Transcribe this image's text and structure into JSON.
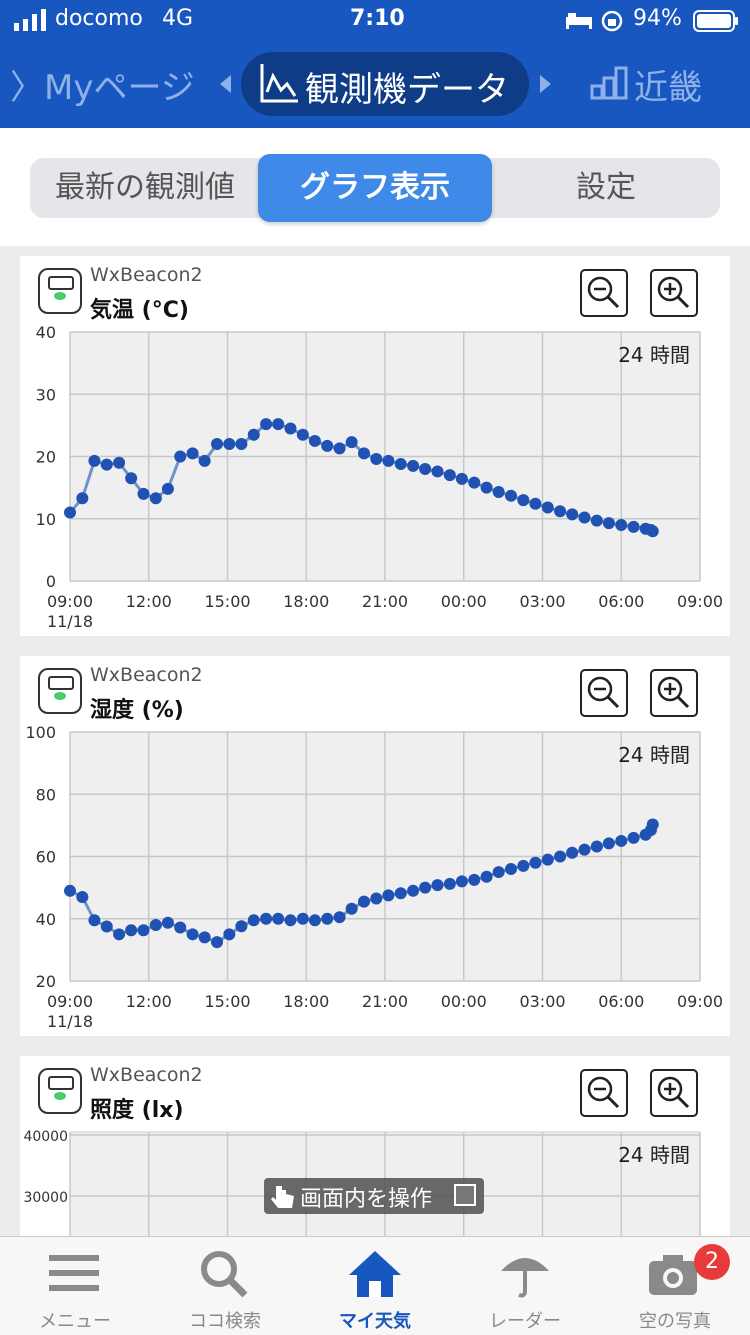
{
  "status_bar": {
    "carrier": "docomo",
    "network": "4G",
    "time": "7:10",
    "battery": "94%"
  },
  "nav": {
    "prev": "Myページ",
    "current": "観測機データ",
    "next": "近畿"
  },
  "segments": {
    "latest": "最新の観測値",
    "graph": "グラフ表示",
    "settings": "設定"
  },
  "charts": [
    {
      "device": "WxBeacon2",
      "metric": "気温 (°C)",
      "range_label": "24 時間",
      "x_date": "11/18",
      "chart_data": {
        "type": "line",
        "title": "気温 (°C)",
        "xlabel": "",
        "ylabel": "",
        "x_ticks": [
          "09:00",
          "12:00",
          "15:00",
          "18:00",
          "21:00",
          "00:00",
          "03:00",
          "06:00",
          "09:00"
        ],
        "y_ticks": [
          "0",
          "10",
          "20",
          "30",
          "40"
        ],
        "ylim": [
          0,
          40
        ],
        "xlim_hours": [
          0,
          24
        ],
        "x_hours": [
          0,
          0.47,
          0.93,
          1.4,
          1.87,
          2.33,
          2.8,
          3.27,
          3.73,
          4.2,
          4.67,
          5.13,
          5.6,
          6.07,
          6.53,
          7,
          7.47,
          7.93,
          8.4,
          8.87,
          9.33,
          9.8,
          10.27,
          10.73,
          11.2,
          11.67,
          12.13,
          12.6,
          13.07,
          13.53,
          14,
          14.47,
          14.93,
          15.4,
          15.87,
          16.33,
          16.8,
          17.27,
          17.73,
          18.2,
          18.67,
          19.13,
          19.6,
          20.07,
          20.53,
          21,
          21.47,
          21.93,
          22.13,
          22.2
        ],
        "values": [
          11,
          13.3,
          19.3,
          18.7,
          19,
          16.5,
          14,
          13.3,
          14.8,
          20,
          20.5,
          19.3,
          22,
          22,
          22,
          23.5,
          25.2,
          25.2,
          24.5,
          23.5,
          22.5,
          21.7,
          21.3,
          22.3,
          20.5,
          19.6,
          19.3,
          18.8,
          18.5,
          18,
          17.6,
          17,
          16.4,
          15.8,
          15,
          14.3,
          13.7,
          13,
          12.4,
          11.8,
          11.2,
          10.7,
          10.2,
          9.7,
          9.3,
          9,
          8.7,
          8.4,
          8.2,
          8
        ],
        "grid": true
      }
    },
    {
      "device": "WxBeacon2",
      "metric": "湿度 (%)",
      "range_label": "24 時間",
      "x_date": "11/18",
      "chart_data": {
        "type": "line",
        "title": "湿度 (%)",
        "xlabel": "",
        "ylabel": "",
        "x_ticks": [
          "09:00",
          "12:00",
          "15:00",
          "18:00",
          "21:00",
          "00:00",
          "03:00",
          "06:00",
          "09:00"
        ],
        "y_ticks": [
          "20",
          "40",
          "60",
          "80",
          "100"
        ],
        "ylim": [
          20,
          100
        ],
        "xlim_hours": [
          0,
          24
        ],
        "x_hours": [
          0,
          0.47,
          0.93,
          1.4,
          1.87,
          2.33,
          2.8,
          3.27,
          3.73,
          4.2,
          4.67,
          5.13,
          5.6,
          6.07,
          6.53,
          7,
          7.47,
          7.93,
          8.4,
          8.87,
          9.33,
          9.8,
          10.27,
          10.73,
          11.2,
          11.67,
          12.13,
          12.6,
          13.07,
          13.53,
          14,
          14.47,
          14.93,
          15.4,
          15.87,
          16.33,
          16.8,
          17.27,
          17.73,
          18.2,
          18.67,
          19.13,
          19.6,
          20.07,
          20.53,
          21,
          21.47,
          21.93,
          22.13,
          22.2
        ],
        "values": [
          49,
          47,
          39.5,
          37.5,
          35,
          36.3,
          36.3,
          38,
          38.7,
          37.2,
          35,
          34,
          32.5,
          35,
          37.6,
          39.5,
          40,
          40,
          39.5,
          40,
          39.5,
          40,
          40.5,
          43.2,
          45.5,
          46.5,
          47.5,
          48.2,
          49,
          50,
          50.8,
          51.2,
          52,
          52.5,
          53.5,
          55,
          56,
          57,
          58,
          59,
          60,
          61.2,
          62.2,
          63.2,
          64.2,
          65,
          66,
          67,
          68.5,
          70.3
        ],
        "grid": true
      }
    },
    {
      "device": "WxBeacon2",
      "metric": "照度 (lx)",
      "range_label": "24 時間",
      "chart_data": {
        "type": "line",
        "title": "照度 (lx)",
        "xlabel": "",
        "ylabel": "",
        "y_ticks": [
          "40000",
          "30000"
        ],
        "grid": true
      }
    }
  ],
  "overlay_label": "画面内を操作",
  "tabbar": {
    "menu": "メニュー",
    "search": "ココ検索",
    "my_weather": "マイ天気",
    "radar": "レーダー",
    "sky_photo": "空の写真",
    "badge": "2"
  },
  "colors": {
    "brand": "#1757bf",
    "accent": "#3f8ae8",
    "series": "#1f52b3"
  }
}
